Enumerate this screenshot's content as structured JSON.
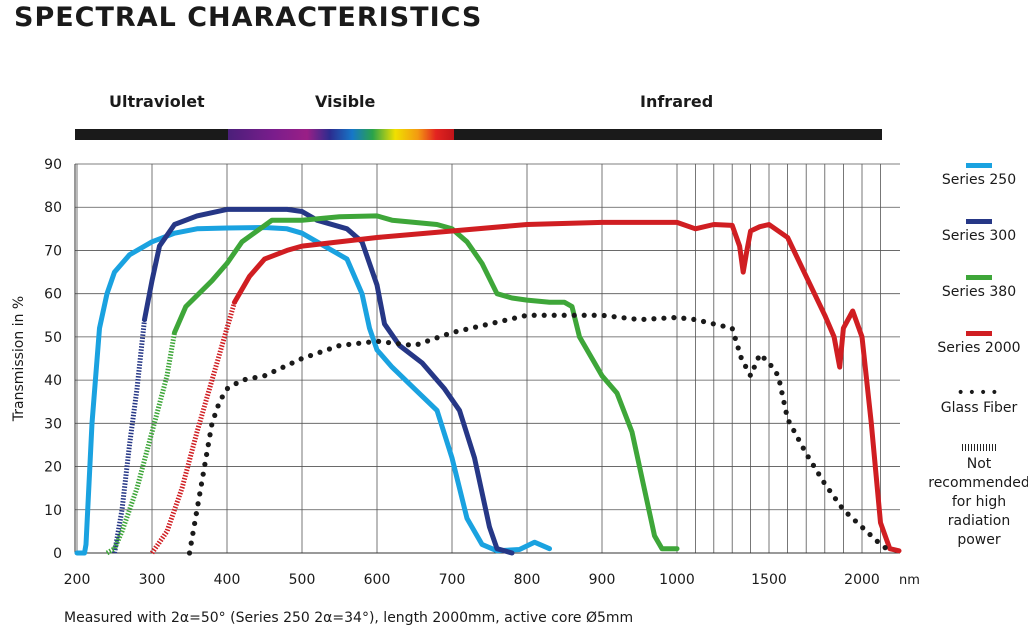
{
  "title": "SPECTRAL CHARACTERISTICS",
  "regions": [
    "Ultraviolet",
    "Visible",
    "Infrared"
  ],
  "footnote": "Measured with 2α=50° (Series 250 2α=34°), length 2000mm, active core Ø5mm",
  "legend": {
    "not_recommended": "Not recommended for high radiation power"
  },
  "chart_data": {
    "type": "line",
    "xlabel": "",
    "ylabel": "Transmission in %",
    "x_unit": "nm",
    "ylim": [
      0,
      90
    ],
    "y_ticks": [
      0,
      10,
      20,
      30,
      40,
      50,
      60,
      70,
      80,
      90
    ],
    "x_ticks": [
      200,
      300,
      400,
      500,
      600,
      700,
      800,
      900,
      1000,
      1500,
      2000
    ],
    "grid": true,
    "legend_position": "right",
    "series": [
      {
        "name": "Series 250",
        "color": "#1aa2e0",
        "not_recommended_x": [],
        "points": [
          [
            200,
            0
          ],
          [
            210,
            0
          ],
          [
            212,
            2
          ],
          [
            220,
            30
          ],
          [
            230,
            52
          ],
          [
            240,
            60
          ],
          [
            250,
            65
          ],
          [
            270,
            69
          ],
          [
            300,
            72
          ],
          [
            330,
            74
          ],
          [
            360,
            75
          ],
          [
            400,
            75.2
          ],
          [
            450,
            75.3
          ],
          [
            480,
            75
          ],
          [
            500,
            74
          ],
          [
            520,
            72
          ],
          [
            540,
            70
          ],
          [
            560,
            68
          ],
          [
            580,
            60
          ],
          [
            590,
            52
          ],
          [
            600,
            47
          ],
          [
            620,
            43
          ],
          [
            650,
            38
          ],
          [
            680,
            33
          ],
          [
            700,
            22
          ],
          [
            720,
            8
          ],
          [
            740,
            2
          ],
          [
            760,
            0.5
          ],
          [
            790,
            0.8
          ],
          [
            810,
            2.5
          ],
          [
            830,
            1
          ]
        ]
      },
      {
        "name": "Series 300",
        "color": "#263786",
        "not_recommended_x": [
          250,
          290
        ],
        "points": [
          [
            250,
            0
          ],
          [
            260,
            10
          ],
          [
            270,
            25
          ],
          [
            280,
            38
          ],
          [
            290,
            54
          ],
          [
            300,
            63
          ],
          [
            310,
            71
          ],
          [
            330,
            76
          ],
          [
            360,
            78
          ],
          [
            400,
            79.5
          ],
          [
            440,
            79.5
          ],
          [
            480,
            79.5
          ],
          [
            500,
            79
          ],
          [
            520,
            77
          ],
          [
            560,
            75
          ],
          [
            580,
            72
          ],
          [
            600,
            62
          ],
          [
            610,
            53
          ],
          [
            630,
            48
          ],
          [
            660,
            44
          ],
          [
            690,
            38
          ],
          [
            710,
            33
          ],
          [
            730,
            22
          ],
          [
            750,
            6
          ],
          [
            760,
            1
          ],
          [
            780,
            0
          ]
        ]
      },
      {
        "name": "Series 380",
        "color": "#3ea639",
        "not_recommended_x": [
          240,
          330
        ],
        "points": [
          [
            240,
            0
          ],
          [
            250,
            1
          ],
          [
            260,
            5
          ],
          [
            280,
            15
          ],
          [
            300,
            28
          ],
          [
            320,
            41
          ],
          [
            330,
            51
          ],
          [
            345,
            57
          ],
          [
            380,
            63
          ],
          [
            400,
            67
          ],
          [
            420,
            72
          ],
          [
            460,
            77
          ],
          [
            500,
            77
          ],
          [
            550,
            77.8
          ],
          [
            600,
            78
          ],
          [
            620,
            77
          ],
          [
            650,
            76.5
          ],
          [
            680,
            76
          ],
          [
            700,
            75
          ],
          [
            720,
            72
          ],
          [
            740,
            67
          ],
          [
            760,
            60
          ],
          [
            780,
            59
          ],
          [
            800,
            58.5
          ],
          [
            830,
            58
          ],
          [
            850,
            58
          ],
          [
            860,
            57
          ],
          [
            870,
            50
          ],
          [
            890,
            44
          ],
          [
            900,
            41
          ],
          [
            920,
            37
          ],
          [
            940,
            28
          ],
          [
            960,
            12
          ],
          [
            970,
            4
          ],
          [
            980,
            1
          ],
          [
            1000,
            1
          ]
        ]
      },
      {
        "name": "Series 2000",
        "color": "#d01e22",
        "not_recommended_x": [
          300,
          410
        ],
        "points": [
          [
            300,
            0
          ],
          [
            320,
            5
          ],
          [
            340,
            15
          ],
          [
            360,
            28
          ],
          [
            380,
            40
          ],
          [
            400,
            52
          ],
          [
            410,
            58
          ],
          [
            430,
            64
          ],
          [
            450,
            68
          ],
          [
            480,
            70
          ],
          [
            500,
            71
          ],
          [
            600,
            73
          ],
          [
            700,
            74.5
          ],
          [
            800,
            76
          ],
          [
            900,
            76.5
          ],
          [
            1000,
            76.5
          ],
          [
            1100,
            75
          ],
          [
            1200,
            76
          ],
          [
            1300,
            75.8
          ],
          [
            1340,
            71
          ],
          [
            1360,
            65
          ],
          [
            1380,
            70
          ],
          [
            1400,
            74.5
          ],
          [
            1450,
            75.5
          ],
          [
            1500,
            76
          ],
          [
            1600,
            73
          ],
          [
            1700,
            64
          ],
          [
            1800,
            55
          ],
          [
            1850,
            50
          ],
          [
            1880,
            43
          ],
          [
            1900,
            52
          ],
          [
            1950,
            56
          ],
          [
            2000,
            50
          ],
          [
            2050,
            30
          ],
          [
            2100,
            7
          ],
          [
            2150,
            1
          ],
          [
            2200,
            0.5
          ]
        ]
      },
      {
        "name": "Glass Fiber",
        "color": "#1a1a1a",
        "points": [
          [
            350,
            0
          ],
          [
            360,
            10
          ],
          [
            370,
            20
          ],
          [
            380,
            30
          ],
          [
            390,
            35
          ],
          [
            400,
            38
          ],
          [
            420,
            40
          ],
          [
            450,
            41
          ],
          [
            500,
            45
          ],
          [
            550,
            48
          ],
          [
            600,
            49
          ],
          [
            650,
            48
          ],
          [
            700,
            51
          ],
          [
            750,
            53
          ],
          [
            800,
            55
          ],
          [
            850,
            55
          ],
          [
            900,
            55
          ],
          [
            950,
            54
          ],
          [
            1000,
            54.5
          ],
          [
            1100,
            54
          ],
          [
            1200,
            53
          ],
          [
            1300,
            52
          ],
          [
            1350,
            45
          ],
          [
            1400,
            41
          ],
          [
            1450,
            46
          ],
          [
            1500,
            44
          ],
          [
            1550,
            41
          ],
          [
            1600,
            31
          ],
          [
            1700,
            23
          ],
          [
            1800,
            16
          ],
          [
            1900,
            10
          ],
          [
            2000,
            6
          ],
          [
            2100,
            2
          ],
          [
            2150,
            0.5
          ]
        ]
      }
    ]
  }
}
